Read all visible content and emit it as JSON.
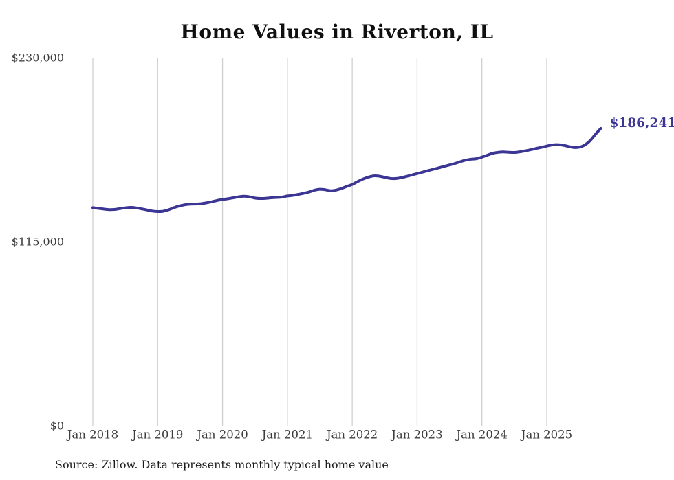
{
  "page": {
    "title": "Home Values in Riverton, IL",
    "source_note": "Source: Zillow. Data represents monthly typical home value"
  },
  "chart_data": {
    "type": "line",
    "title": "Home Values in Riverton, IL",
    "series_name": "Monthly typical home value",
    "ylim": [
      0,
      230000
    ],
    "grid": "vertical-only",
    "legend": "none",
    "line_color": "#3b3594",
    "label_color": "#3b3594",
    "grid_color": "#cfcfcf",
    "axis_text_color": "#3d3d3d",
    "end_label": "$186,241",
    "end_value": 186241,
    "y_ticks": [
      {
        "value": 0,
        "label": "$0"
      },
      {
        "value": 115000,
        "label": "$115,000"
      },
      {
        "value": 230000,
        "label": "$230,000"
      }
    ],
    "x_ticks": [
      {
        "month": "2018-01",
        "label": "Jan 2018"
      },
      {
        "month": "2019-01",
        "label": "Jan 2019"
      },
      {
        "month": "2020-01",
        "label": "Jan 2020"
      },
      {
        "month": "2021-01",
        "label": "Jan 2021"
      },
      {
        "month": "2022-01",
        "label": "Jan 2022"
      },
      {
        "month": "2023-01",
        "label": "Jan 2023"
      },
      {
        "month": "2024-01",
        "label": "Jan 2024"
      },
      {
        "month": "2025-01",
        "label": "Jan 2025"
      }
    ],
    "x": [
      "2018-01",
      "2018-02",
      "2018-03",
      "2018-04",
      "2018-05",
      "2018-06",
      "2018-07",
      "2018-08",
      "2018-09",
      "2018-10",
      "2018-11",
      "2018-12",
      "2019-01",
      "2019-02",
      "2019-03",
      "2019-04",
      "2019-05",
      "2019-06",
      "2019-07",
      "2019-08",
      "2019-09",
      "2019-10",
      "2019-11",
      "2019-12",
      "2020-01",
      "2020-02",
      "2020-03",
      "2020-04",
      "2020-05",
      "2020-06",
      "2020-07",
      "2020-08",
      "2020-09",
      "2020-10",
      "2020-11",
      "2020-12",
      "2021-01",
      "2021-02",
      "2021-03",
      "2021-04",
      "2021-05",
      "2021-06",
      "2021-07",
      "2021-08",
      "2021-09",
      "2021-10",
      "2021-11",
      "2021-12",
      "2022-01",
      "2022-02",
      "2022-03",
      "2022-04",
      "2022-05",
      "2022-06",
      "2022-07",
      "2022-08",
      "2022-09",
      "2022-10",
      "2022-11",
      "2022-12",
      "2023-01",
      "2023-02",
      "2023-03",
      "2023-04",
      "2023-05",
      "2023-06",
      "2023-07",
      "2023-08",
      "2023-09",
      "2023-10",
      "2023-11",
      "2023-12",
      "2024-01",
      "2024-02",
      "2024-03",
      "2024-04",
      "2024-05",
      "2024-06",
      "2024-07",
      "2024-08",
      "2024-09",
      "2024-10",
      "2024-11",
      "2024-12",
      "2025-01",
      "2025-02",
      "2025-03",
      "2025-04",
      "2025-05",
      "2025-06",
      "2025-07",
      "2025-08",
      "2025-09",
      "2025-10",
      "2025-11"
    ],
    "values": [
      136700,
      136300,
      135850,
      135500,
      135600,
      136100,
      136600,
      136900,
      136600,
      136000,
      135300,
      134600,
      134300,
      134500,
      135400,
      136700,
      137800,
      138500,
      138900,
      139000,
      139200,
      139700,
      140400,
      141200,
      141900,
      142300,
      142900,
      143500,
      143900,
      143500,
      142700,
      142450,
      142600,
      142900,
      143100,
      143300,
      144000,
      144400,
      145000,
      145700,
      146500,
      147600,
      148200,
      147900,
      147300,
      147700,
      148700,
      150000,
      151200,
      153000,
      154600,
      155800,
      156600,
      156400,
      155700,
      155000,
      154900,
      155400,
      156200,
      157100,
      158000,
      158900,
      159800,
      160700,
      161600,
      162500,
      163400,
      164300,
      165400,
      166400,
      167000,
      167300,
      168300,
      169500,
      170700,
      171300,
      171500,
      171300,
      171200,
      171600,
      172200,
      172900,
      173700,
      174400,
      175200,
      175900,
      176100,
      175700,
      175000,
      174300,
      174500,
      175800,
      178500,
      182500,
      186241
    ]
  }
}
